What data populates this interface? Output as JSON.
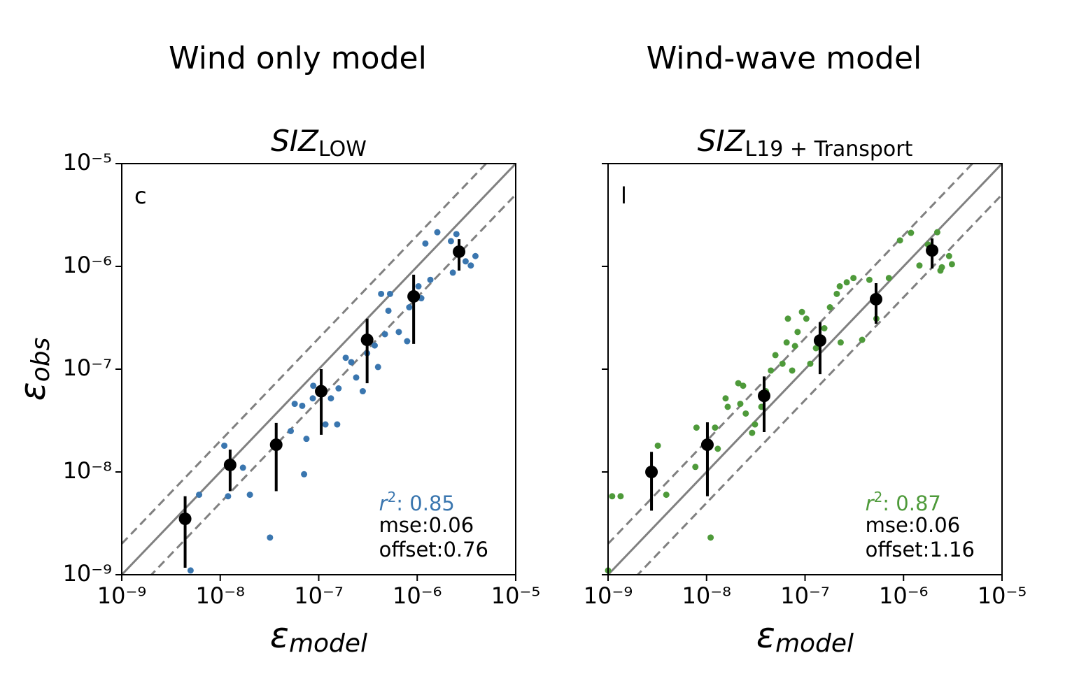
{
  "chart_data": [
    {
      "type": "scatter",
      "heading": "Wind only model",
      "title": {
        "text": "SIZ",
        "sub": "LOW"
      },
      "panel_label": "c",
      "xlabel": {
        "text": "ε",
        "sub": "model"
      },
      "ylabel": {
        "text": "ε",
        "sub": "obs"
      },
      "log_scale": true,
      "xlim": [
        1e-09,
        1e-05
      ],
      "ylim": [
        1e-09,
        1e-05
      ],
      "xticks": [
        {
          "value": 1e-09,
          "label": "10⁻⁹"
        },
        {
          "value": 1e-08,
          "label": "10⁻⁸"
        },
        {
          "value": 1e-07,
          "label": "10⁻⁷"
        },
        {
          "value": 1e-06,
          "label": "10⁻⁶"
        },
        {
          "value": 1e-05,
          "label": "10⁻⁵"
        }
      ],
      "yticks": [
        {
          "value": 1e-09,
          "label": "10⁻⁹"
        },
        {
          "value": 1e-08,
          "label": "10⁻⁸"
        },
        {
          "value": 1e-07,
          "label": "10⁻⁷"
        },
        {
          "value": 1e-06,
          "label": "10⁻⁶"
        },
        {
          "value": 1e-05,
          "label": "10⁻⁵"
        }
      ],
      "ytick_labels": true,
      "reference_lines": [
        {
          "factor": 1,
          "style": "solid"
        },
        {
          "factor": 2,
          "style": "dashed"
        },
        {
          "factor": 0.5,
          "style": "dashed"
        }
      ],
      "points": {
        "color": "#3a76af",
        "x": [
          6.1e-09,
          5e-09,
          1.1e-08,
          1.2e-08,
          1.7e-08,
          2e-08,
          3.2e-08,
          5.2e-08,
          5.7e-08,
          6.8e-08,
          7.5e-08,
          7.1e-08,
          8.7e-08,
          8.8e-08,
          1.17e-07,
          1.33e-07,
          1.54e-07,
          1.59e-07,
          1.88e-07,
          2.14e-07,
          2.4e-07,
          2.8e-07,
          3.1e-07,
          3.7e-07,
          4e-07,
          4.7e-07,
          5.1e-07,
          4.3e-07,
          5.3e-07,
          6.5e-07,
          7.9e-07,
          8.3e-07,
          1.03e-06,
          1.1e-06,
          1.21e-06,
          1.36e-06,
          1.6e-06,
          2.2e-06,
          2.5e-06,
          3.1e-06,
          3.9e-06,
          3.5e-06,
          2.3e-06
        ],
        "y": [
          6e-09,
          1.1e-09,
          1.8e-08,
          5.8e-09,
          1.1e-08,
          6e-09,
          2.3e-09,
          2.5e-08,
          4.6e-08,
          4.4e-08,
          2.1e-08,
          9.5e-09,
          5.2e-08,
          6.9e-08,
          2.9e-08,
          5.2e-08,
          2.9e-08,
          6.5e-08,
          1.29e-07,
          1.17e-07,
          8.3e-08,
          6.1e-08,
          1.43e-07,
          1.7e-07,
          1.05e-07,
          2.19e-07,
          3.7e-07,
          5.4e-07,
          5.4e-07,
          2.3e-07,
          1.87e-07,
          4e-07,
          6.4e-07,
          4.9e-07,
          1.67e-06,
          7.4e-07,
          2.15e-06,
          1.76e-06,
          2.06e-06,
          1.12e-06,
          1.26e-06,
          1.02e-06,
          8.7e-07
        ]
      },
      "binned": {
        "color": "#000000",
        "x": [
          4.4e-09,
          1.26e-08,
          3.7e-08,
          1.06e-07,
          3.1e-07,
          9.2e-07,
          2.66e-06
        ],
        "y": [
          3.5e-09,
          1.17e-08,
          1.84e-08,
          6.1e-08,
          1.93e-07,
          5.1e-07,
          1.39e-06
        ],
        "lower": [
          1.17e-09,
          6.5e-09,
          6.5e-09,
          2.3e-08,
          7.3e-08,
          1.76e-07,
          9.1e-07
        ],
        "upper": [
          5.8e-09,
          1.65e-08,
          3e-08,
          1e-07,
          3.1e-07,
          8.3e-07,
          1.84e-06
        ]
      },
      "stats": {
        "color": "#3a76af",
        "r": {
          "text": "r",
          "sup": "2",
          "after": ": 0.85"
        },
        "mse": "mse:0.06",
        "offset": "offset:0.76"
      }
    },
    {
      "type": "scatter",
      "heading": "Wind-wave model",
      "title": {
        "text": "SIZ",
        "sub": "L19 + Transport"
      },
      "panel_label": "l",
      "xlabel": {
        "text": "ε",
        "sub": "model"
      },
      "log_scale": true,
      "xlim": [
        1e-09,
        1e-05
      ],
      "ylim": [
        1e-09,
        1e-05
      ],
      "xticks": [
        {
          "value": 1e-09,
          "label": "10⁻⁹"
        },
        {
          "value": 1e-08,
          "label": "10⁻⁸"
        },
        {
          "value": 1e-07,
          "label": "10⁻⁷"
        },
        {
          "value": 1e-06,
          "label": "10⁻⁶"
        },
        {
          "value": 1e-05,
          "label": "10⁻⁵"
        }
      ],
      "yticks": [
        1e-09,
        1e-08,
        1e-07,
        1e-06,
        1e-05
      ],
      "ytick_labels": false,
      "reference_lines": [
        {
          "factor": 1,
          "style": "solid"
        },
        {
          "factor": 2,
          "style": "dashed"
        },
        {
          "factor": 0.5,
          "style": "dashed"
        }
      ],
      "points": {
        "color": "#4e9a3a",
        "x": [
          1e-09,
          1.1e-09,
          1.34e-09,
          3.2e-09,
          3.9e-09,
          7.7e-09,
          1.1e-08,
          7.9e-09,
          1.3e-08,
          1.22e-08,
          1.56e-08,
          1.64e-08,
          2.1e-08,
          2.35e-08,
          2.2e-08,
          2.5e-08,
          2.9e-08,
          3.1e-08,
          3.6e-08,
          4e-08,
          4.5e-08,
          5e-08,
          5.9e-08,
          6.5e-08,
          6.7e-08,
          7.4e-08,
          7.9e-08,
          8.4e-08,
          9.3e-08,
          1.03e-07,
          1.13e-07,
          1.29e-07,
          1.57e-07,
          1.79e-07,
          2.1e-07,
          2.25e-07,
          2.3e-07,
          2.65e-07,
          3.1e-07,
          3.8e-07,
          4.5e-07,
          5.3e-07,
          7.1e-07,
          9.2e-07,
          1.19e-06,
          1.45e-06,
          1.77e-06,
          2.2e-06,
          2.45e-06,
          2.9e-06,
          3.1e-06,
          2.37e-06
        ],
        "y": [
          1.1e-09,
          5.8e-09,
          5.8e-09,
          1.8e-08,
          6e-09,
          1.12e-08,
          2.3e-09,
          2.7e-08,
          1.68e-08,
          2.7e-08,
          5.2e-08,
          4.3e-08,
          7.3e-08,
          6.9e-08,
          4.6e-08,
          3.7e-08,
          2.4e-08,
          2.9e-08,
          4.3e-08,
          6.1e-08,
          9.7e-08,
          1.37e-07,
          1.13e-07,
          1.82e-07,
          3.1e-07,
          9.7e-08,
          1.68e-07,
          2.3e-07,
          3.6e-07,
          3.1e-07,
          1.13e-07,
          1.6e-07,
          2.5e-07,
          4e-07,
          5.4e-07,
          6.4e-07,
          1.82e-07,
          7e-07,
          7.7e-07,
          1.93e-07,
          7.4e-07,
          3.1e-07,
          7.7e-07,
          1.79e-06,
          2.12e-06,
          1.02e-06,
          1.63e-06,
          2.15e-06,
          9.8e-07,
          1.26e-06,
          1.05e-06,
          9.1e-07
        ]
      },
      "binned": {
        "color": "#000000",
        "x": [
          2.76e-09,
          1.02e-08,
          3.84e-08,
          1.42e-07,
          5.26e-07,
          1.95e-06
        ],
        "y": [
          1e-08,
          1.84e-08,
          5.5e-08,
          1.9e-07,
          4.79e-07,
          1.43e-06
        ],
        "lower": [
          4.2e-09,
          5.8e-09,
          2.44e-08,
          8.95e-08,
          2.77e-07,
          9.55e-07
        ],
        "upper": [
          1.57e-08,
          3.04e-08,
          8.5e-08,
          2.86e-07,
          6.87e-07,
          1.87e-06
        ]
      },
      "stats": {
        "color": "#4e9a3a",
        "r": {
          "text": "r",
          "sup": "2",
          "after": ": 0.87"
        },
        "mse": "mse:0.06",
        "offset": "offset:1.16"
      }
    }
  ]
}
